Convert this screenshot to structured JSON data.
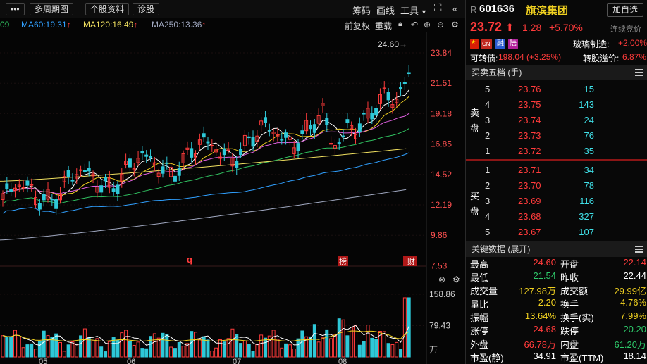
{
  "toolbar": {
    "more_label": "•••",
    "multi_period_label": "多周期图",
    "stock_info_label": "个股资料",
    "diagnose_label": "诊股",
    "chip_label": "筹码",
    "draw_label": "画线",
    "tools_label": "工具",
    "forward_adjust_label": "前复权",
    "overlay_label": "重载"
  },
  "ma_legend": {
    "ma_prev_value": "09",
    "ma60": "MA60:19.31",
    "ma120": "MA120:16.49",
    "ma250": "MA250:13.36",
    "ma60_color": "#30a0ff",
    "ma120_color": "#f0e060",
    "ma250_color": "#a0a8c0",
    "arrow": "↑"
  },
  "kline": {
    "price_axis": [
      "23.84",
      "21.51",
      "19.18",
      "16.85",
      "14.52",
      "12.19",
      "9.86",
      "7.53"
    ],
    "high_marker": "24.60→",
    "event_markers": [
      {
        "label": "q",
        "style": "red-text"
      },
      {
        "label": "榜",
        "style": "red-box"
      },
      {
        "label": "财",
        "style": "red-box"
      }
    ]
  },
  "volume": {
    "axis": [
      "158.86",
      "79.43",
      "万"
    ],
    "months": [
      "05",
      "06",
      "07",
      "08"
    ]
  },
  "quote": {
    "market_prefix": "R",
    "code": "601636",
    "name": "旗滨集团",
    "add_button": "加自选",
    "price": "23.72",
    "arrow": "⬆",
    "change": "1.28",
    "change_pct": "+5.70%",
    "auction_label": "连续竞价",
    "tags": [
      "CN",
      "融",
      "陆"
    ],
    "sector": "玻璃制造:",
    "sector_pct": "+2.00%",
    "convertible_label": "可转债:",
    "convertible_value": "198.04 (+3.25%)",
    "premium_label": "转股溢价:",
    "premium_value": "6.87%"
  },
  "orderbook": {
    "title": "买卖五档 (手)",
    "sell_label": [
      "卖",
      "盘"
    ],
    "buy_label": [
      "买",
      "盘"
    ],
    "asks": [
      {
        "level": "5",
        "price": "23.76",
        "volume": "15"
      },
      {
        "level": "4",
        "price": "23.75",
        "volume": "143"
      },
      {
        "level": "3",
        "price": "23.74",
        "volume": "24"
      },
      {
        "level": "2",
        "price": "23.73",
        "volume": "76"
      },
      {
        "level": "1",
        "price": "23.72",
        "volume": "35"
      }
    ],
    "bids": [
      {
        "level": "1",
        "price": "23.71",
        "volume": "34"
      },
      {
        "level": "2",
        "price": "23.70",
        "volume": "78"
      },
      {
        "level": "3",
        "price": "23.69",
        "volume": "116"
      },
      {
        "level": "4",
        "price": "23.68",
        "volume": "327"
      },
      {
        "level": "5",
        "price": "23.67",
        "volume": "107"
      }
    ]
  },
  "key_data": {
    "title": "关键数据 (展开)",
    "rows": [
      {
        "l1": "最高",
        "v1": "24.60",
        "c1": "red",
        "l2": "开盘",
        "v2": "22.14",
        "c2": "red"
      },
      {
        "l1": "最低",
        "v1": "21.54",
        "c1": "green",
        "l2": "昨收",
        "v2": "22.44",
        "c2": "white"
      },
      {
        "l1": "成交量",
        "v1": "127.98万",
        "c1": "yellow",
        "l2": "成交额",
        "v2": "29.99亿",
        "c2": "yellow"
      },
      {
        "l1": "量比",
        "v1": "2.20",
        "c1": "yellow",
        "l2": "换手",
        "v2": "4.76%",
        "c2": "yellow"
      },
      {
        "l1": "振幅",
        "v1": "13.64%",
        "c1": "yellow",
        "l2": "换手(实)",
        "v2": "7.99%",
        "c2": "yellow"
      },
      {
        "l1": "涨停",
        "v1": "24.68",
        "c1": "red",
        "l2": "跌停",
        "v2": "20.20",
        "c2": "green"
      },
      {
        "l1": "外盘",
        "v1": "66.78万",
        "c1": "red",
        "l2": "内盘",
        "v2": "61.20万",
        "c2": "green"
      },
      {
        "l1": "市盈(静)",
        "v1": "34.91",
        "c1": "white",
        "l2": "市盈(TTM)",
        "v2": "18.14",
        "c2": "white"
      }
    ]
  },
  "colors": {
    "up": "#ff3b3b",
    "down": "#2ec8d8",
    "background": "#050505"
  }
}
